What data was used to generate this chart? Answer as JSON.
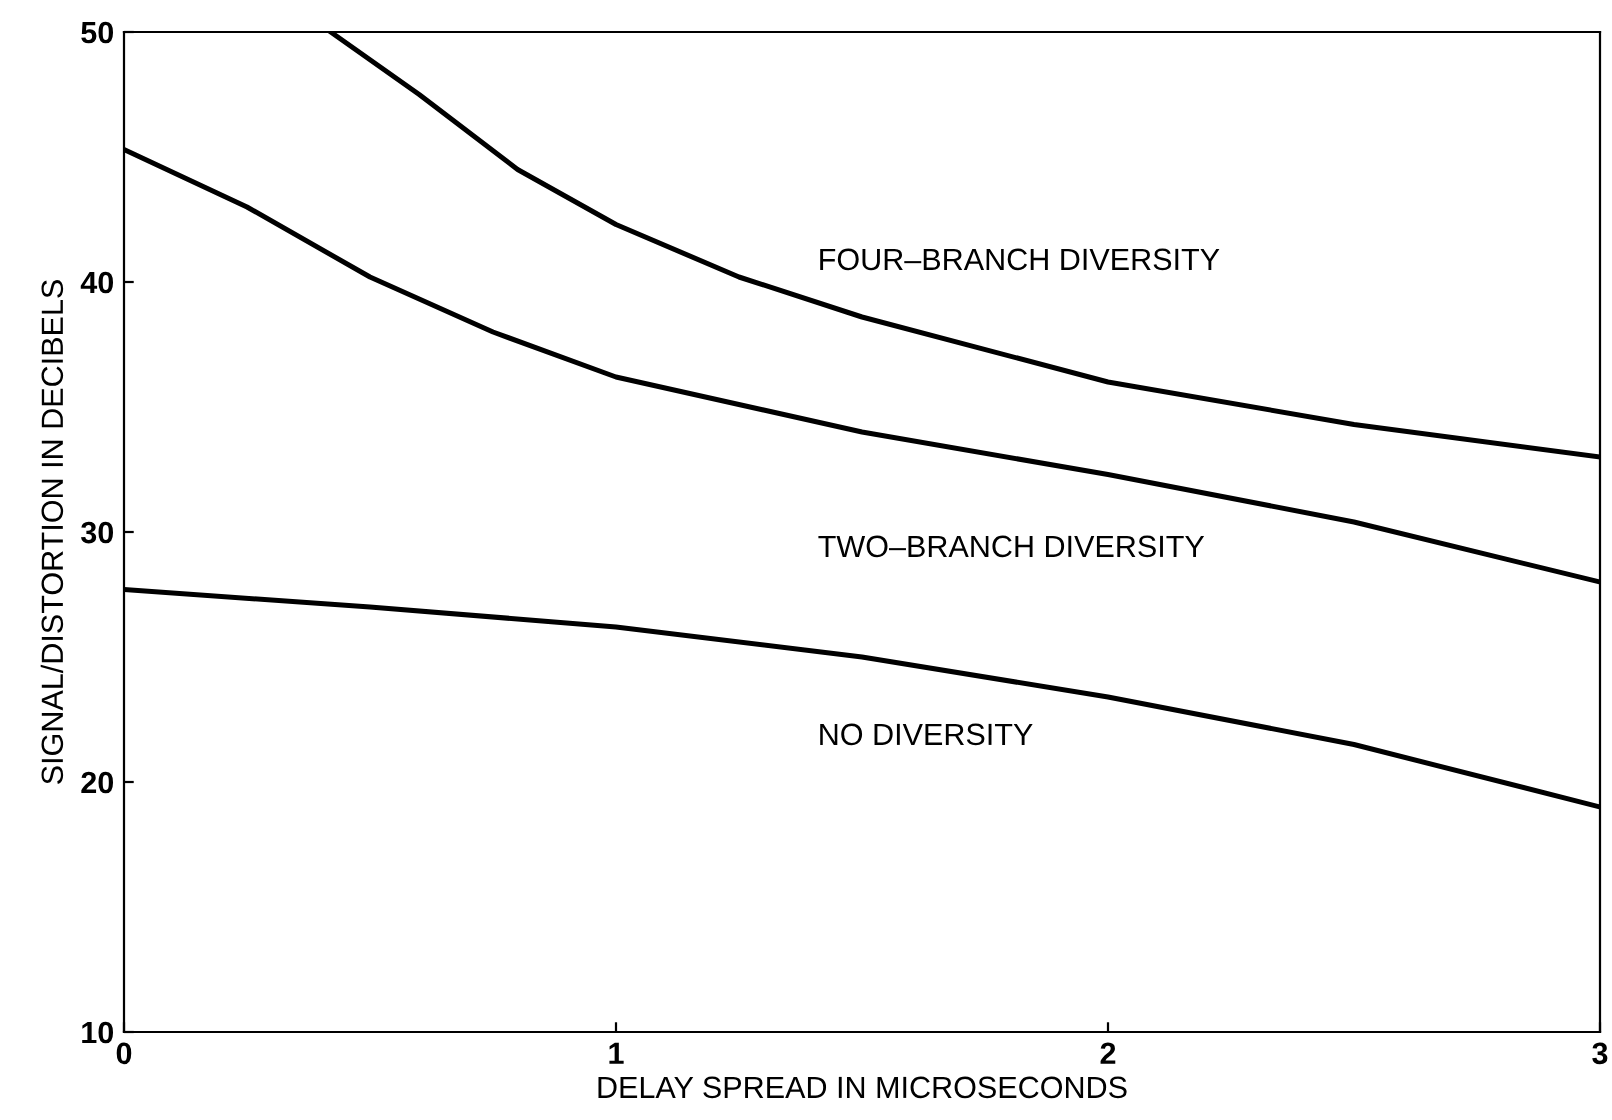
{
  "chart_data": {
    "type": "line",
    "xlabel": "DELAY SPREAD IN MICROSECONDS",
    "ylabel": "SIGNAL/DISTORTION IN DECIBELS",
    "xlim": [
      0,
      3
    ],
    "ylim": [
      10,
      50
    ],
    "xticks": [
      0,
      1,
      2,
      3
    ],
    "yticks": [
      10,
      20,
      30,
      40,
      50
    ],
    "grid": false,
    "legend": false,
    "series": [
      {
        "color": "#000000",
        "x": [
          0.42,
          0.6,
          0.8,
          1,
          1.25,
          1.5,
          2,
          2.5,
          3
        ],
        "values": [
          50,
          47.5,
          44.5,
          42.3,
          40.2,
          38.6,
          36,
          34.3,
          33
        ]
      },
      {
        "color": "#000000",
        "x": [
          0,
          0.25,
          0.5,
          0.75,
          1,
          1.5,
          2,
          2.5,
          3
        ],
        "values": [
          45.3,
          43,
          40.2,
          38,
          36.2,
          34,
          32.3,
          30.4,
          28
        ]
      },
      {
        "color": "#000000",
        "x": [
          0,
          0.5,
          1,
          1.5,
          2,
          2.5,
          3
        ],
        "values": [
          27.7,
          27,
          26.2,
          25,
          23.4,
          21.5,
          19
        ]
      }
    ],
    "annotations": [
      "FOUR–BRANCH DIVERSITY",
      "TWO–BRANCH DIVERSITY",
      "NO DIVERSITY"
    ]
  }
}
